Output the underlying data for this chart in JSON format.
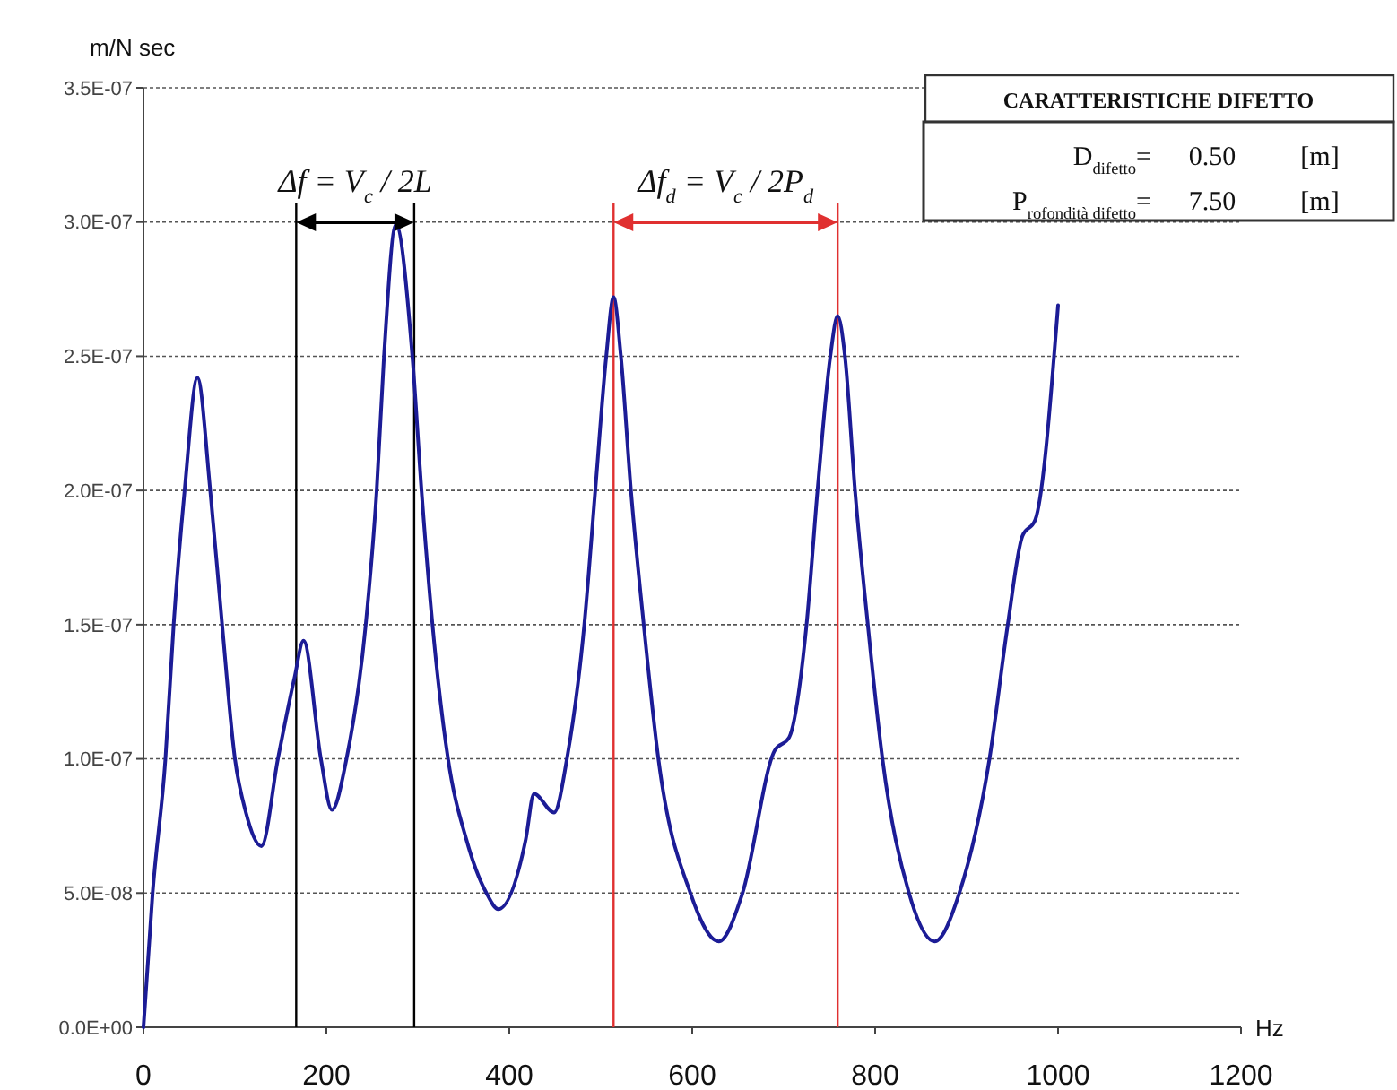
{
  "chart_data": {
    "type": "line",
    "xlabel": "Hz",
    "ylabel": "m/N sec",
    "series": [
      {
        "color": "#1c1c96",
        "x": [
          0,
          10,
          24,
          33,
          45,
          59,
          73,
          86,
          100,
          112,
          129,
          147,
          165,
          175,
          194,
          206,
          222,
          243,
          255,
          263,
          276,
          294,
          304,
          316,
          333,
          353,
          375,
          388,
          418,
          427,
          449,
          463,
          482,
          494,
          506,
          514,
          522,
          533,
          547,
          563,
          598,
          629,
          655,
          690,
          706,
          725,
          737,
          751,
          759,
          767,
          778,
          792,
          808,
          837,
          865,
          892,
          925,
          945,
          961,
          975,
          1000
        ],
        "values": [
          0,
          5e-08,
          1e-07,
          1.5e-07,
          2e-07,
          2.42e-07,
          2e-07,
          1.5e-07,
          1e-07,
          8e-08,
          6.75e-08,
          1e-07,
          1.3e-07,
          1.44e-07,
          1e-07,
          8.1e-08,
          1e-07,
          1.5e-07,
          2e-07,
          2.5e-07,
          2.99e-07,
          2.5e-07,
          2e-07,
          1.5e-07,
          1e-07,
          7e-08,
          5e-08,
          4.4e-08,
          7e-08,
          8.7e-08,
          8e-08,
          1e-07,
          1.5e-07,
          2e-07,
          2.5e-07,
          2.72e-07,
          2.5e-07,
          2e-07,
          1.5e-07,
          1e-07,
          5e-08,
          3.2e-08,
          5e-08,
          1.03e-07,
          1.08e-07,
          1.5e-07,
          2e-07,
          2.5e-07,
          2.65e-07,
          2.5e-07,
          2e-07,
          1.5e-07,
          1e-07,
          5e-08,
          3.2e-08,
          5e-08,
          1e-07,
          1.5e-07,
          1.83e-07,
          1.89e-07,
          2.69e-07
        ]
      }
    ],
    "xlim": [
      0,
      1200
    ],
    "xticks": [
      0,
      200,
      400,
      600,
      800,
      1000,
      1200
    ],
    "ylim": [
      0,
      3.5e-07
    ],
    "yticks": [
      {
        "value": 0,
        "label": "0.0E+00"
      },
      {
        "value": 5e-08,
        "label": "5.0E-08"
      },
      {
        "value": 1e-07,
        "label": "1.0E-07"
      },
      {
        "value": 1.5e-07,
        "label": "1.5E-07"
      },
      {
        "value": 2e-07,
        "label": "2.0E-07"
      },
      {
        "value": 2.5e-07,
        "label": "2.5E-07"
      },
      {
        "value": 3e-07,
        "label": "3.0E-07"
      },
      {
        "value": 3.5e-07,
        "label": "3.5E-07"
      }
    ],
    "grid": "y",
    "line_style": "solid",
    "marker": "none",
    "ref_lines": [
      {
        "axis": "x",
        "value": 167,
        "color": "#000000"
      },
      {
        "axis": "x",
        "value": 296,
        "color": "#000000"
      },
      {
        "axis": "x",
        "value": 514,
        "color": "#e03030"
      },
      {
        "axis": "x",
        "value": 759,
        "color": "#e03030"
      }
    ],
    "annotations": [
      "Δf = V$_{c}$ / 2L",
      "Δf$_{d}$ = V$_{c}$ / 2P$_{d}$",
      "CARATTERISTICHE DIFETTO",
      "D$_{difetto}$=",
      "0.50",
      "[m]",
      "P$_{rofondità difetto}$=",
      "7.50",
      "[m]"
    ]
  }
}
